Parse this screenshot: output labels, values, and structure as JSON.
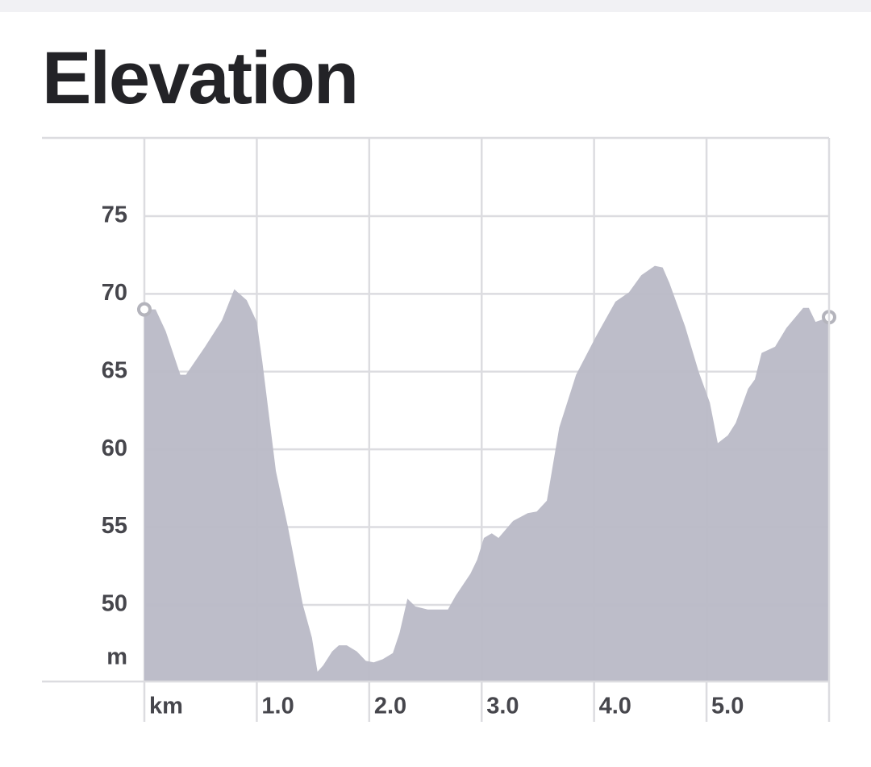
{
  "chart_data": {
    "type": "area",
    "title": "Elevation",
    "y_label": "m",
    "color": "#b9b9c6",
    "grid": true,
    "x": [
      0,
      0.1,
      0.19,
      0.32,
      0.37,
      0.54,
      0.69,
      0.8,
      0.91,
      1.0,
      1.05,
      1.17,
      1.28,
      1.41,
      1.49,
      1.54,
      1.59,
      1.67,
      1.73,
      1.8,
      1.89,
      1.97,
      2.04,
      2.12,
      2.21,
      2.27,
      2.34,
      2.41,
      2.52,
      2.7,
      2.77,
      2.9,
      2.96,
      3.02,
      3.09,
      3.15,
      3.28,
      3.41,
      3.49,
      3.58,
      3.69,
      3.84,
      4.02,
      4.19,
      4.31,
      4.42,
      4.54,
      4.61,
      4.67,
      4.81,
      4.93,
      5.03,
      5.1,
      5.19,
      5.26,
      5.37,
      5.43,
      5.49,
      5.61,
      5.71,
      5.86,
      5.91,
      5.97,
      6.09
    ],
    "values": [
      69.0,
      69.0,
      67.6,
      64.8,
      64.8,
      66.6,
      68.3,
      70.3,
      69.6,
      68.2,
      65.6,
      58.6,
      54.9,
      50.0,
      47.9,
      45.7,
      46.1,
      47.0,
      47.4,
      47.4,
      47.0,
      46.4,
      46.3,
      46.5,
      46.9,
      48.2,
      50.4,
      49.9,
      49.7,
      49.7,
      50.6,
      52.0,
      52.9,
      54.3,
      54.6,
      54.3,
      55.4,
      55.9,
      56.0,
      56.7,
      61.4,
      64.8,
      67.3,
      69.5,
      70.1,
      71.2,
      71.8,
      71.7,
      70.7,
      67.9,
      65.0,
      63.0,
      60.4,
      60.9,
      61.7,
      63.9,
      64.5,
      66.2,
      66.6,
      67.8,
      69.1,
      69.1,
      68.2,
      68.5
    ],
    "xlim": [
      0,
      6.09
    ],
    "ylim": [
      45.07,
      80.03
    ],
    "xticks": [
      {
        "value": 0,
        "label": "km"
      },
      {
        "value": 1,
        "label": "1.0"
      },
      {
        "value": 2,
        "label": "2.0"
      },
      {
        "value": 3,
        "label": "3.0"
      },
      {
        "value": 4,
        "label": "4.0"
      },
      {
        "value": 5,
        "label": "5.0"
      }
    ],
    "yticks": [
      50,
      55,
      60,
      65,
      70,
      75
    ]
  }
}
